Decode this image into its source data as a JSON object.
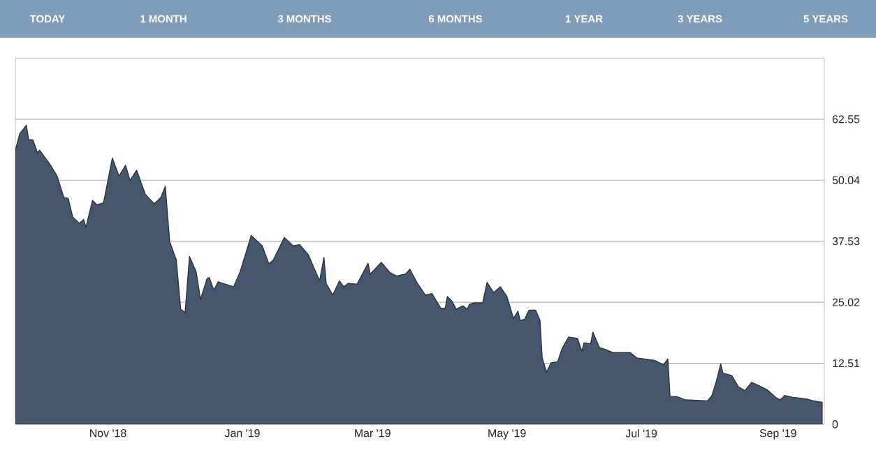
{
  "chart_data": {
    "type": "area",
    "color": "#46566c",
    "x": [
      "2018-09-20",
      "2018-09-22",
      "2018-09-25",
      "2018-09-26",
      "2018-09-28",
      "2018-09-30",
      "2018-10-01",
      "2018-10-06",
      "2018-10-09",
      "2018-10-12",
      "2018-10-14",
      "2018-10-16",
      "2018-10-19",
      "2018-10-21",
      "2018-10-22",
      "2018-10-25",
      "2018-10-27",
      "2018-10-30",
      "2018-11-03",
      "2018-11-06",
      "2018-11-09",
      "2018-11-11",
      "2018-11-14",
      "2018-11-18",
      "2018-11-22",
      "2018-11-25",
      "2018-11-27",
      "2018-11-29",
      "2018-12-02",
      "2018-12-04",
      "2018-12-06",
      "2018-12-08",
      "2018-12-11",
      "2018-12-13",
      "2018-12-16",
      "2018-12-17",
      "2018-12-19",
      "2018-12-21",
      "2018-12-28",
      "2018-12-31",
      "2019-01-05",
      "2019-01-10",
      "2019-01-13",
      "2019-01-15",
      "2019-01-20",
      "2019-01-24",
      "2019-01-27",
      "2019-01-31",
      "2019-02-05",
      "2019-02-07",
      "2019-02-08",
      "2019-02-11",
      "2019-02-14",
      "2019-02-16",
      "2019-02-18",
      "2019-02-22",
      "2019-02-27",
      "2019-02-28",
      "2019-03-05",
      "2019-03-09",
      "2019-03-12",
      "2019-03-16",
      "2019-03-18",
      "2019-03-21",
      "2019-03-25",
      "2019-03-28",
      "2019-04-01",
      "2019-04-03",
      "2019-04-04",
      "2019-04-06",
      "2019-04-08",
      "2019-04-11",
      "2019-04-13",
      "2019-04-14",
      "2019-04-16",
      "2019-04-20",
      "2019-04-22",
      "2019-04-25",
      "2019-04-28",
      "2019-05-01",
      "2019-05-04",
      "2019-05-06",
      "2019-05-07",
      "2019-05-09",
      "2019-05-11",
      "2019-05-14",
      "2019-05-16",
      "2019-05-17",
      "2019-05-19",
      "2019-05-21",
      "2019-05-24",
      "2019-05-26",
      "2019-05-29",
      "2019-06-02",
      "2019-06-04",
      "2019-06-05",
      "2019-06-08",
      "2019-06-09",
      "2019-06-12",
      "2019-06-15",
      "2019-06-18",
      "2019-06-26",
      "2019-06-29",
      "2019-07-07",
      "2019-07-11",
      "2019-07-13",
      "2019-07-14",
      "2019-07-17",
      "2019-07-21",
      "2019-07-31",
      "2019-08-02",
      "2019-08-04",
      "2019-08-06",
      "2019-08-07",
      "2019-08-11",
      "2019-08-14",
      "2019-08-17",
      "2019-08-20",
      "2019-08-23",
      "2019-08-27",
      "2019-08-31",
      "2019-09-02",
      "2019-09-04",
      "2019-09-08",
      "2019-09-14",
      "2019-09-17",
      "2019-09-21"
    ],
    "values": [
      56.2,
      59.6,
      61.3,
      58.4,
      58.3,
      55.7,
      56.2,
      53.1,
      50.8,
      46.5,
      46.3,
      42.5,
      41.2,
      42.0,
      40.4,
      45.9,
      45.0,
      45.4,
      54.6,
      50.9,
      53.1,
      50.0,
      52.1,
      47.1,
      45.2,
      46.5,
      48.8,
      37.5,
      33.7,
      23.6,
      22.9,
      34.4,
      31.3,
      25.6,
      29.9,
      30.1,
      27.5,
      29.2,
      28.2,
      31.3,
      38.7,
      36.6,
      32.9,
      33.7,
      38.3,
      36.6,
      36.8,
      34.7,
      29.4,
      34.2,
      28.9,
      26.5,
      29.4,
      28.2,
      28.9,
      28.7,
      33.0,
      30.8,
      33.2,
      31.1,
      30.4,
      30.8,
      31.8,
      29.2,
      26.5,
      26.8,
      23.8,
      23.8,
      26.2,
      25.3,
      23.6,
      24.3,
      23.6,
      24.6,
      24.9,
      24.9,
      29.1,
      27.0,
      28.2,
      26.2,
      21.7,
      23.2,
      21.3,
      21.5,
      23.4,
      23.4,
      21.3,
      13.6,
      10.7,
      12.6,
      12.8,
      15.5,
      17.9,
      17.6,
      15.0,
      16.7,
      16.5,
      18.9,
      15.7,
      15.3,
      14.7,
      14.7,
      13.6,
      13.1,
      12.2,
      13.4,
      5.7,
      5.7,
      5.0,
      4.8,
      5.9,
      8.8,
      12.4,
      10.5,
      10.0,
      7.7,
      6.9,
      8.6,
      8.0,
      7.1,
      5.5,
      5.0,
      5.9,
      5.5,
      5.2,
      4.8,
      4.5
    ],
    "xlim": [
      "2018-09-20",
      "2019-09-22"
    ],
    "xticks": [
      {
        "value": "2018-11-01",
        "label": "Nov '18"
      },
      {
        "value": "2019-01-01",
        "label": "Jan '19"
      },
      {
        "value": "2019-03-01",
        "label": "Mar '19"
      },
      {
        "value": "2019-05-01",
        "label": "May '19"
      },
      {
        "value": "2019-07-01",
        "label": "Jul '19"
      },
      {
        "value": "2019-09-01",
        "label": "Sep '19"
      }
    ],
    "ylim": [
      0,
      75.06
    ],
    "yticks": [
      0,
      12.51,
      25.02,
      37.53,
      50.04,
      62.55
    ],
    "grid": "y",
    "annotations": [
      "TODAY",
      "1 MONTH",
      "3 MONTHS",
      "6 MONTHS",
      "1 YEAR",
      "3 YEARS",
      "5 YEARS"
    ]
  }
}
